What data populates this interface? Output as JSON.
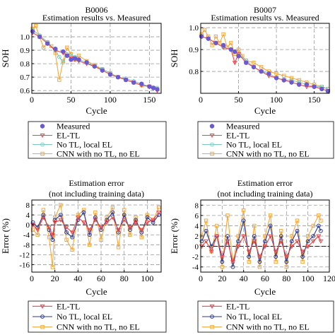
{
  "colors": {
    "measured": "#6a5acd",
    "el_tl": "#e8474a",
    "no_tl_local_el": "#7ec8c0",
    "cnn": "#f2a93b",
    "err_el_tl": "#e8474a",
    "err_no_tl": "#2b3a8c",
    "err_cnn": "#f2a93b",
    "grid": "#999999"
  },
  "chart_data": [
    {
      "id": "b0006_soh",
      "type": "line",
      "title": "B0006",
      "subtitle": "Estimation results vs. Measured",
      "xlabel": "Cycle",
      "ylabel": "SOH",
      "xlim": [
        0,
        165
      ],
      "ylim": [
        0.58,
        1.1
      ],
      "xticks": [
        0,
        50,
        100,
        150
      ],
      "yticks": [
        0.6,
        0.7,
        0.8,
        0.9,
        1.0
      ],
      "ytick_labels": [
        "0.6",
        "0.7",
        "0.8",
        "0.9",
        "1.0"
      ],
      "grid": true,
      "series": [
        {
          "name": "Measured",
          "x": [
            1,
            10,
            20,
            30,
            40,
            45,
            50,
            55,
            60,
            70,
            80,
            90,
            100,
            110,
            120,
            130,
            140,
            150,
            155,
            160
          ],
          "y": [
            1.04,
            1.0,
            0.95,
            0.91,
            0.89,
            0.86,
            0.83,
            0.84,
            0.83,
            0.81,
            0.78,
            0.75,
            0.72,
            0.7,
            0.68,
            0.66,
            0.65,
            0.63,
            0.62,
            0.61
          ]
        },
        {
          "name": "EL-TL",
          "x": [
            1,
            10,
            20,
            30,
            40,
            45,
            50,
            55,
            60,
            70,
            80,
            90,
            100,
            110,
            120,
            130,
            140,
            150,
            155,
            160
          ],
          "y": [
            1.03,
            1.0,
            0.95,
            0.9,
            0.88,
            0.86,
            0.84,
            0.83,
            0.82,
            0.8,
            0.78,
            0.75,
            0.72,
            0.7,
            0.68,
            0.66,
            0.64,
            0.63,
            0.62,
            0.6
          ]
        },
        {
          "name": "No TL, local EL",
          "x": [
            1,
            10,
            20,
            30,
            35,
            40,
            45,
            50,
            55,
            60,
            70,
            80,
            90,
            100,
            110,
            120,
            130,
            140,
            150,
            160
          ],
          "y": [
            1.05,
            1.01,
            0.96,
            0.9,
            0.85,
            0.81,
            0.87,
            0.86,
            0.85,
            0.83,
            0.81,
            0.78,
            0.76,
            0.73,
            0.7,
            0.69,
            0.67,
            0.65,
            0.63,
            0.62
          ]
        },
        {
          "name": "CNN with no TL, no EL",
          "x": [
            1,
            5,
            10,
            15,
            20,
            25,
            30,
            35,
            40,
            45,
            50,
            55,
            60,
            70,
            80,
            90,
            100,
            110,
            120,
            130,
            140,
            150,
            160
          ],
          "y": [
            1.06,
            1.08,
            1.0,
            0.92,
            0.96,
            0.93,
            0.88,
            0.68,
            0.82,
            0.92,
            0.87,
            0.83,
            0.86,
            0.82,
            0.79,
            0.76,
            0.73,
            0.7,
            0.68,
            0.66,
            0.64,
            0.63,
            0.61
          ]
        }
      ],
      "legend": "below"
    },
    {
      "id": "b0007_soh",
      "type": "line",
      "title": "B0007",
      "subtitle": "Estimation results vs. Measured",
      "xlabel": "Cycle",
      "ylabel": "SOH",
      "xlim": [
        0,
        170
      ],
      "ylim": [
        0.7,
        1.02
      ],
      "xticks": [
        0,
        50,
        100,
        150
      ],
      "yticks": [
        0.8,
        0.9,
        1.0
      ],
      "ytick_labels": [
        "0.8",
        "0.9",
        "1.0"
      ],
      "grid": true,
      "series": [
        {
          "name": "Measured",
          "x": [
            1,
            10,
            20,
            30,
            40,
            45,
            50,
            60,
            70,
            80,
            90,
            100,
            110,
            120,
            130,
            140,
            150,
            160,
            168
          ],
          "y": [
            0.96,
            0.95,
            0.93,
            0.92,
            0.9,
            0.89,
            0.87,
            0.84,
            0.82,
            0.8,
            0.79,
            0.77,
            0.76,
            0.75,
            0.74,
            0.74,
            0.73,
            0.72,
            0.71
          ]
        },
        {
          "name": "EL-TL",
          "x": [
            1,
            10,
            20,
            30,
            40,
            45,
            50,
            60,
            70,
            80,
            90,
            100,
            110,
            120,
            130,
            140,
            150,
            160,
            168
          ],
          "y": [
            0.96,
            0.95,
            0.93,
            0.91,
            0.9,
            0.84,
            0.88,
            0.84,
            0.82,
            0.8,
            0.78,
            0.77,
            0.76,
            0.75,
            0.74,
            0.73,
            0.73,
            0.72,
            0.71
          ]
        },
        {
          "name": "No TL, local EL",
          "x": [
            1,
            10,
            20,
            30,
            40,
            50,
            60,
            70,
            80,
            90,
            100,
            110,
            120,
            130,
            140,
            150,
            160,
            168
          ],
          "y": [
            0.96,
            0.95,
            0.93,
            0.91,
            0.9,
            0.88,
            0.85,
            0.82,
            0.8,
            0.79,
            0.77,
            0.76,
            0.76,
            0.75,
            0.74,
            0.73,
            0.73,
            0.72
          ]
        },
        {
          "name": "CNN with no TL, no EL",
          "x": [
            1,
            5,
            10,
            15,
            20,
            25,
            30,
            35,
            40,
            45,
            50,
            55,
            60,
            70,
            80,
            90,
            100,
            110,
            120,
            130,
            140,
            150,
            160,
            168
          ],
          "y": [
            0.97,
            0.99,
            0.96,
            0.92,
            0.96,
            0.93,
            0.97,
            0.91,
            0.93,
            0.88,
            0.9,
            0.87,
            0.85,
            0.84,
            0.82,
            0.8,
            0.79,
            0.78,
            0.77,
            0.76,
            0.75,
            0.74,
            0.73,
            0.72
          ]
        }
      ],
      "legend": "below"
    },
    {
      "id": "b0006_error",
      "type": "line",
      "title": "Estimation error",
      "subtitle": "(not including training data)",
      "xlabel": "Cycle",
      "ylabel": "Error (%)",
      "xlim": [
        0,
        112
      ],
      "ylim": [
        -19,
        10
      ],
      "xticks": [
        0,
        20,
        40,
        60,
        80,
        100
      ],
      "yticks": [
        8,
        4,
        0,
        -4,
        -8,
        -12,
        -16
      ],
      "ytick_labels": [
        "8",
        "4",
        "0",
        "-4",
        "-8",
        "-12",
        "-16"
      ],
      "grid": true,
      "series": [
        {
          "name": "EL-TL",
          "x": [
            1,
            5,
            10,
            15,
            18,
            20,
            25,
            30,
            35,
            40,
            45,
            50,
            55,
            60,
            65,
            70,
            75,
            80,
            85,
            90,
            95,
            100,
            105,
            110
          ],
          "y": [
            0,
            -2,
            3,
            -1,
            -4,
            1,
            2,
            -1,
            -3,
            3,
            1,
            -2,
            2,
            -1,
            1,
            3,
            -2,
            2,
            -1,
            1,
            -2,
            1,
            2,
            5
          ]
        },
        {
          "name": "No TL, local EL",
          "x": [
            1,
            5,
            10,
            15,
            18,
            20,
            25,
            30,
            35,
            40,
            45,
            50,
            55,
            60,
            65,
            70,
            75,
            80,
            85,
            90,
            95,
            100,
            105,
            110
          ],
          "y": [
            1,
            -1,
            4,
            -2,
            -6,
            2,
            4,
            -3,
            -5,
            2,
            5,
            -4,
            3,
            -2,
            2,
            5,
            -3,
            4,
            -2,
            2,
            -3,
            3,
            1,
            4
          ]
        },
        {
          "name": "CNN with no TL, no EL",
          "x": [
            1,
            5,
            10,
            15,
            18,
            20,
            25,
            30,
            35,
            40,
            45,
            50,
            55,
            60,
            65,
            70,
            75,
            80,
            85,
            90,
            95,
            100,
            105,
            110
          ],
          "y": [
            -2,
            -4,
            6,
            -5,
            -17,
            3,
            8,
            -6,
            -10,
            4,
            6,
            -8,
            5,
            -6,
            3,
            7,
            -9,
            6,
            -4,
            3,
            -5,
            4,
            2,
            7
          ]
        }
      ],
      "legend": "below"
    },
    {
      "id": "b0007_error",
      "type": "line",
      "title": "Estimation error",
      "subtitle": "(not including training data)",
      "xlabel": "Cycle",
      "ylabel": "Error (%)",
      "xlim": [
        0,
        120
      ],
      "ylim": [
        -5,
        9
      ],
      "xticks": [
        0,
        20,
        40,
        60,
        80,
        100,
        120
      ],
      "yticks": [
        8,
        6,
        4,
        2,
        0,
        -2,
        -4
      ],
      "ytick_labels": [
        "8",
        "6",
        "4",
        "2",
        "0",
        "-2",
        "-4"
      ],
      "grid": true,
      "series": [
        {
          "name": "EL-TL",
          "x": [
            1,
            5,
            10,
            15,
            20,
            25,
            30,
            35,
            40,
            45,
            50,
            55,
            60,
            65,
            70,
            75,
            80,
            85,
            90,
            95,
            100,
            105,
            110,
            112
          ],
          "y": [
            0,
            1,
            -1,
            2,
            -2,
            1,
            -3,
            0,
            2,
            -1,
            1,
            -2,
            0,
            2,
            -1,
            1,
            -2,
            0,
            1,
            -1,
            0,
            1,
            2,
            1
          ]
        },
        {
          "name": "No TL, local EL",
          "x": [
            1,
            5,
            10,
            15,
            20,
            25,
            30,
            35,
            40,
            45,
            50,
            55,
            60,
            65,
            70,
            75,
            80,
            85,
            90,
            95,
            100,
            105,
            110,
            112
          ],
          "y": [
            1,
            3,
            0,
            2,
            -3,
            2,
            -4,
            1,
            5,
            -2,
            2,
            -3,
            1,
            4,
            -2,
            2,
            -3,
            1,
            3,
            -2,
            1,
            2,
            4,
            3
          ]
        },
        {
          "name": "CNN with no TL, no EL",
          "x": [
            1,
            5,
            10,
            15,
            20,
            25,
            30,
            35,
            40,
            45,
            50,
            55,
            60,
            65,
            70,
            75,
            80,
            85,
            90,
            95,
            100,
            105,
            110,
            112
          ],
          "y": [
            2,
            5,
            -1,
            4,
            -4,
            6,
            -3,
            2,
            7,
            -3,
            4,
            -4,
            2,
            6,
            -3,
            3,
            -4,
            2,
            5,
            -3,
            2,
            4,
            6,
            5
          ]
        }
      ],
      "legend": "below"
    }
  ]
}
